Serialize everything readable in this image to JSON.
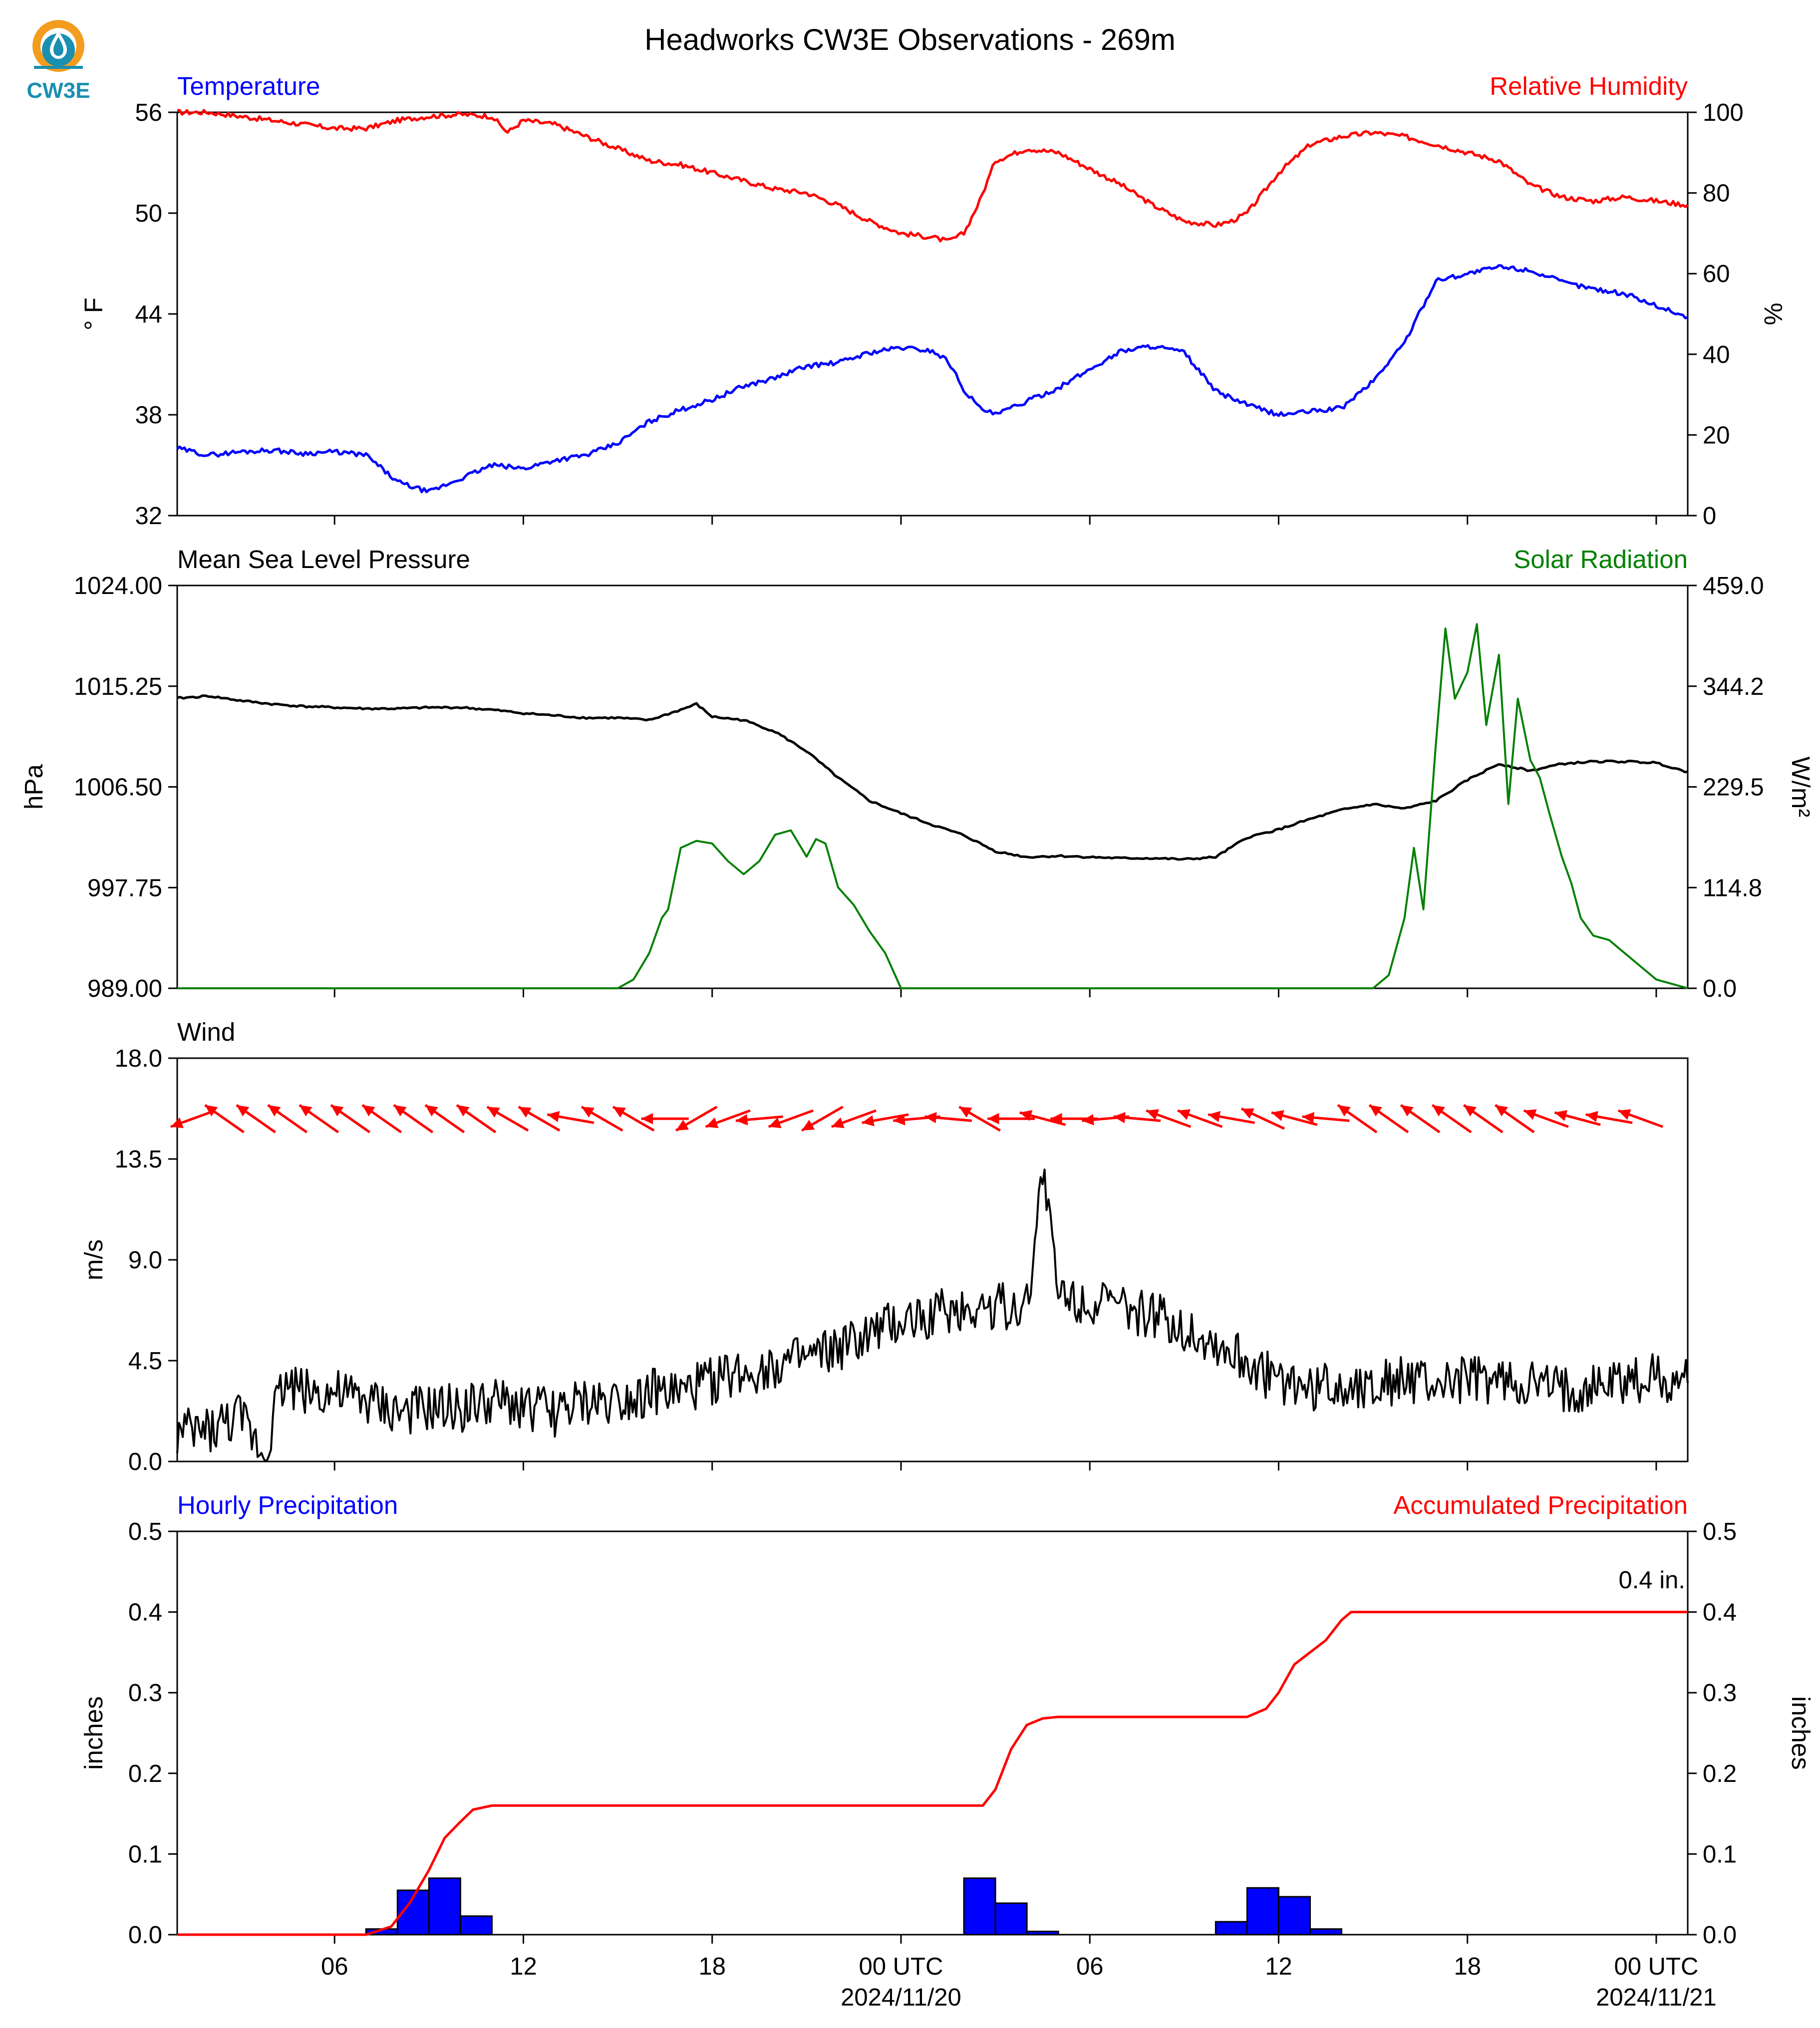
{
  "title": "Headworks CW3E Observations - 269m",
  "logo": {
    "text": "CW3E",
    "icon": "cw3e-logo-icon",
    "color": "#1a8fb0"
  },
  "colors": {
    "temperature": "#0000ff",
    "humidity": "#ff0000",
    "pressure": "#000000",
    "solar": "#008000",
    "wind_speed": "#000000",
    "wind_barbs": "#ff0000",
    "hourly_precip": "#0000ff",
    "accum_precip": "#ff0000"
  },
  "time_axis": {
    "range_hours": [
      0,
      48
    ],
    "tick_labels": [
      {
        "hour": 5,
        "label": "06"
      },
      {
        "hour": 11,
        "label": "12"
      },
      {
        "hour": 17,
        "label": "18"
      },
      {
        "hour": 23,
        "label": "00 UTC"
      },
      {
        "hour": 29,
        "label": "06"
      },
      {
        "hour": 35,
        "label": "12"
      },
      {
        "hour": 41,
        "label": "18"
      },
      {
        "hour": 47,
        "label": "00 UTC"
      }
    ],
    "dates": [
      {
        "hour": 23,
        "label": "2024/11/20"
      },
      {
        "hour": 47,
        "label": "2024/11/21"
      }
    ]
  },
  "chart_data": [
    {
      "type": "line",
      "name": "temperature-humidity",
      "left_title": "Temperature",
      "right_title": "Relative Humidity",
      "ylabel_left": "° F",
      "ylabel_right": "%",
      "ylim_left": [
        32,
        56
      ],
      "ylim_right": [
        0,
        100
      ],
      "yticks_left": [
        "32",
        "38",
        "44",
        "50",
        "56"
      ],
      "yticks_right": [
        "0",
        "20",
        "40",
        "60",
        "80",
        "100"
      ],
      "series": [
        {
          "name": "Temperature",
          "axis": "left",
          "x": [
            0,
            1,
            2,
            3,
            4,
            5,
            6,
            7,
            8,
            9,
            10,
            11,
            12,
            13,
            14,
            15,
            16,
            17,
            18,
            19,
            20,
            21,
            22,
            23,
            24,
            24.5,
            25,
            25.5,
            26,
            27,
            28,
            29,
            30,
            31,
            32,
            33,
            34,
            35,
            36,
            37,
            38,
            39,
            40,
            41,
            42,
            43,
            44,
            45,
            46,
            47,
            48
          ],
          "y": [
            36,
            35.6,
            35.8,
            35.9,
            35.7,
            35.8,
            35.6,
            34.0,
            33.4,
            34.2,
            35.0,
            34.8,
            35.3,
            35.6,
            36.3,
            37.6,
            38.3,
            38.9,
            39.7,
            40.2,
            40.9,
            41.1,
            41.7,
            42.0,
            41.8,
            41.2,
            39.5,
            38.4,
            38.0,
            38.8,
            39.6,
            40.7,
            41.8,
            42.1,
            41.7,
            39.4,
            38.6,
            38.0,
            38.2,
            38.4,
            40.0,
            42.3,
            46.0,
            46.4,
            46.8,
            46.6,
            45.9,
            45.5,
            45.2,
            44.5,
            43.8
          ]
        },
        {
          "name": "Relative Humidity",
          "axis": "right",
          "x": [
            0,
            1,
            2,
            3,
            4,
            5,
            6,
            7,
            8,
            9,
            10,
            10.5,
            11,
            12,
            13,
            14,
            15,
            16,
            17,
            18,
            19,
            20,
            21,
            22,
            23,
            24,
            24.5,
            25,
            25.5,
            26,
            27,
            28,
            29,
            30,
            31,
            32,
            33,
            33.5,
            34,
            35,
            36,
            37,
            38,
            39,
            40,
            41,
            42,
            43,
            44,
            45,
            46,
            47,
            48
          ],
          "y": [
            100,
            100,
            99,
            98,
            97,
            96,
            96,
            98,
            99,
            99.5,
            99,
            95,
            98,
            97,
            94,
            91,
            88,
            87,
            85,
            83,
            81,
            80,
            77,
            73,
            70,
            69,
            68,
            70,
            78,
            88,
            91,
            90,
            86,
            82,
            77,
            73,
            72,
            73,
            75,
            85,
            92,
            94,
            95,
            94,
            92,
            90,
            88,
            82,
            79,
            78,
            79,
            78,
            77
          ]
        }
      ]
    },
    {
      "type": "line",
      "name": "pressure-solar",
      "left_title": "Mean Sea Level Pressure",
      "right_title": "Solar Radiation",
      "ylabel_left": "hPa",
      "ylabel_right": "W/m²",
      "ylim_left": [
        989.0,
        1024.0
      ],
      "ylim_right": [
        0.0,
        459.0
      ],
      "yticks_left": [
        "989.00",
        "997.75",
        "1006.50",
        "1015.25",
        "1024.00"
      ],
      "yticks_right": [
        "0.0",
        "114.8",
        "229.5",
        "344.2",
        "459.0"
      ],
      "series": [
        {
          "name": "Mean Sea Level Pressure",
          "axis": "left",
          "x": [
            0,
            1,
            2,
            3,
            4,
            5,
            6,
            7,
            8,
            9,
            10,
            11,
            12,
            13,
            14,
            15,
            16,
            16.5,
            17,
            18,
            19,
            20,
            21,
            22,
            23,
            24,
            25,
            26,
            27,
            28,
            29,
            30,
            31,
            32,
            33,
            34,
            35,
            36,
            37,
            38,
            39,
            40,
            41,
            42,
            43,
            44,
            45,
            46,
            47,
            48
          ],
          "y": [
            1014.2,
            1014.4,
            1014.0,
            1013.7,
            1013.5,
            1013.4,
            1013.3,
            1013.3,
            1013.4,
            1013.4,
            1013.2,
            1012.9,
            1012.7,
            1012.5,
            1012.5,
            1012.3,
            1013.2,
            1013.7,
            1012.6,
            1012.3,
            1011.3,
            1009.6,
            1007.3,
            1005.3,
            1004.2,
            1003.2,
            1002.3,
            1000.9,
            1000.4,
            1000.5,
            1000.4,
            1000.3,
            1000.3,
            1000.2,
            1000.4,
            1002.1,
            1002.8,
            1003.7,
            1004.5,
            1005.0,
            1004.6,
            1005.3,
            1007.1,
            1008.5,
            1007.9,
            1008.5,
            1008.7,
            1008.7,
            1008.6,
            1007.8
          ]
        },
        {
          "name": "Solar Radiation",
          "axis": "right",
          "x": [
            0,
            14,
            14.5,
            15,
            15.4,
            15.6,
            16,
            16.5,
            17,
            17.5,
            18,
            18.5,
            19,
            19.5,
            20,
            20.3,
            20.6,
            21,
            21.5,
            22,
            22.5,
            23,
            38,
            38.5,
            39,
            39.3,
            39.6,
            40,
            40.3,
            40.6,
            41,
            41.3,
            41.6,
            42,
            42.3,
            42.6,
            43,
            43.3,
            43.6,
            44,
            44.3,
            44.6,
            45,
            45.5,
            46,
            46.5,
            47,
            47.5,
            48
          ],
          "y": [
            0,
            0,
            10,
            40,
            80,
            90,
            160,
            168,
            165,
            145,
            130,
            145,
            175,
            180,
            150,
            170,
            165,
            115,
            95,
            65,
            40,
            0,
            0,
            15,
            80,
            160,
            90,
            280,
            410,
            330,
            360,
            415,
            300,
            380,
            210,
            330,
            260,
            240,
            200,
            150,
            120,
            80,
            60,
            55,
            40,
            25,
            10,
            5,
            0
          ]
        }
      ]
    },
    {
      "type": "line",
      "name": "wind",
      "left_title": "Wind",
      "ylabel_left": "m/s",
      "ylim_left": [
        0.0,
        18.0
      ],
      "yticks_left": [
        "0.0",
        "4.5",
        "9.0",
        "13.5",
        "18.0"
      ],
      "series": [
        {
          "name": "Wind Speed",
          "axis": "left",
          "x": [
            0,
            1,
            2,
            2.8,
            3.1,
            3.4,
            4,
            5,
            6,
            7,
            8,
            9,
            10,
            11,
            12,
            13,
            14,
            15,
            16,
            17,
            18,
            19,
            20,
            21,
            22,
            23,
            24,
            25,
            26,
            27,
            27.5,
            28,
            29,
            30,
            31,
            32,
            33,
            34,
            35,
            36,
            37,
            38,
            39,
            40,
            41,
            42,
            43,
            44,
            45,
            46,
            47,
            48
          ],
          "y": [
            1.2,
            1.4,
            2.0,
            0.3,
            2.5,
            3.5,
            3.2,
            3.0,
            2.7,
            2.2,
            2.3,
            2.4,
            2.6,
            2.5,
            2.2,
            2.6,
            2.8,
            3.1,
            3.0,
            3.6,
            4.0,
            4.3,
            4.5,
            5.0,
            5.6,
            6.2,
            6.6,
            6.8,
            7.0,
            6.9,
            13.2,
            7.5,
            7.2,
            6.8,
            6.5,
            6.0,
            5.2,
            4.4,
            3.6,
            3.3,
            3.4,
            3.5,
            3.6,
            3.4,
            3.6,
            3.5,
            3.4,
            3.1,
            3.3,
            3.6,
            3.8,
            3.5
          ]
        }
      ],
      "wind_barb_level": 15.3,
      "wind_barbs": {
        "x": [
          0.5,
          1.5,
          2.5,
          3.5,
          4.5,
          5.5,
          6.5,
          7.5,
          8.5,
          9.5,
          10.5,
          11.5,
          12.5,
          13.5,
          14.5,
          15.5,
          16.5,
          17.5,
          18.5,
          19.5,
          20.5,
          21.5,
          22.5,
          23.5,
          24.5,
          25.5,
          26.5,
          27.5,
          28.5,
          29.5,
          30.5,
          31.5,
          32.5,
          33.5,
          34.5,
          35.5,
          36.5,
          37.5,
          38.5,
          39.5,
          40.5,
          41.5,
          42.5,
          43.5,
          44.5,
          45.5,
          46.5
        ],
        "direction_deg": [
          250,
          305,
          305,
          305,
          305,
          305,
          305,
          305,
          305,
          305,
          300,
          300,
          280,
          300,
          300,
          270,
          240,
          250,
          265,
          250,
          240,
          250,
          260,
          265,
          275,
          300,
          270,
          285,
          270,
          265,
          275,
          290,
          290,
          280,
          295,
          285,
          275,
          305,
          305,
          305,
          305,
          305,
          305,
          290,
          285,
          280,
          290
        ]
      }
    },
    {
      "type": "bar",
      "name": "precipitation",
      "left_title": "Hourly Precipitation",
      "right_title": "Accumulated Precipitation",
      "ylabel_left": "inches",
      "ylabel_right": "inches",
      "ylim_left": [
        0.0,
        0.5
      ],
      "ylim_right": [
        0.0,
        0.5
      ],
      "yticks_left": [
        "0.0",
        "0.1",
        "0.2",
        "0.3",
        "0.4",
        "0.5"
      ],
      "yticks_right": [
        "0.0",
        "0.1",
        "0.2",
        "0.3",
        "0.4",
        "0.5"
      ],
      "annotation": "0.4 in.",
      "hourly_bars": {
        "x": [
          6,
          7,
          8,
          9,
          25,
          26,
          27,
          33,
          34,
          35,
          36
        ],
        "values": [
          0.007,
          0.055,
          0.07,
          0.023,
          0.07,
          0.039,
          0.004,
          0.016,
          0.058,
          0.047,
          0.007
        ]
      },
      "series": [
        {
          "name": "Accumulated Precipitation",
          "axis": "right",
          "x": [
            0,
            6,
            6.8,
            7.4,
            8,
            8.5,
            9,
            9.4,
            10,
            25.6,
            26,
            26.5,
            27,
            27.5,
            28,
            28.5,
            34,
            34.6,
            35,
            35.5,
            36,
            36.5,
            37,
            37.3,
            48
          ],
          "y": [
            0,
            0,
            0.01,
            0.04,
            0.08,
            0.12,
            0.14,
            0.155,
            0.16,
            0.16,
            0.18,
            0.23,
            0.26,
            0.268,
            0.27,
            0.27,
            0.27,
            0.28,
            0.3,
            0.335,
            0.35,
            0.365,
            0.39,
            0.4,
            0.4
          ]
        }
      ]
    }
  ]
}
